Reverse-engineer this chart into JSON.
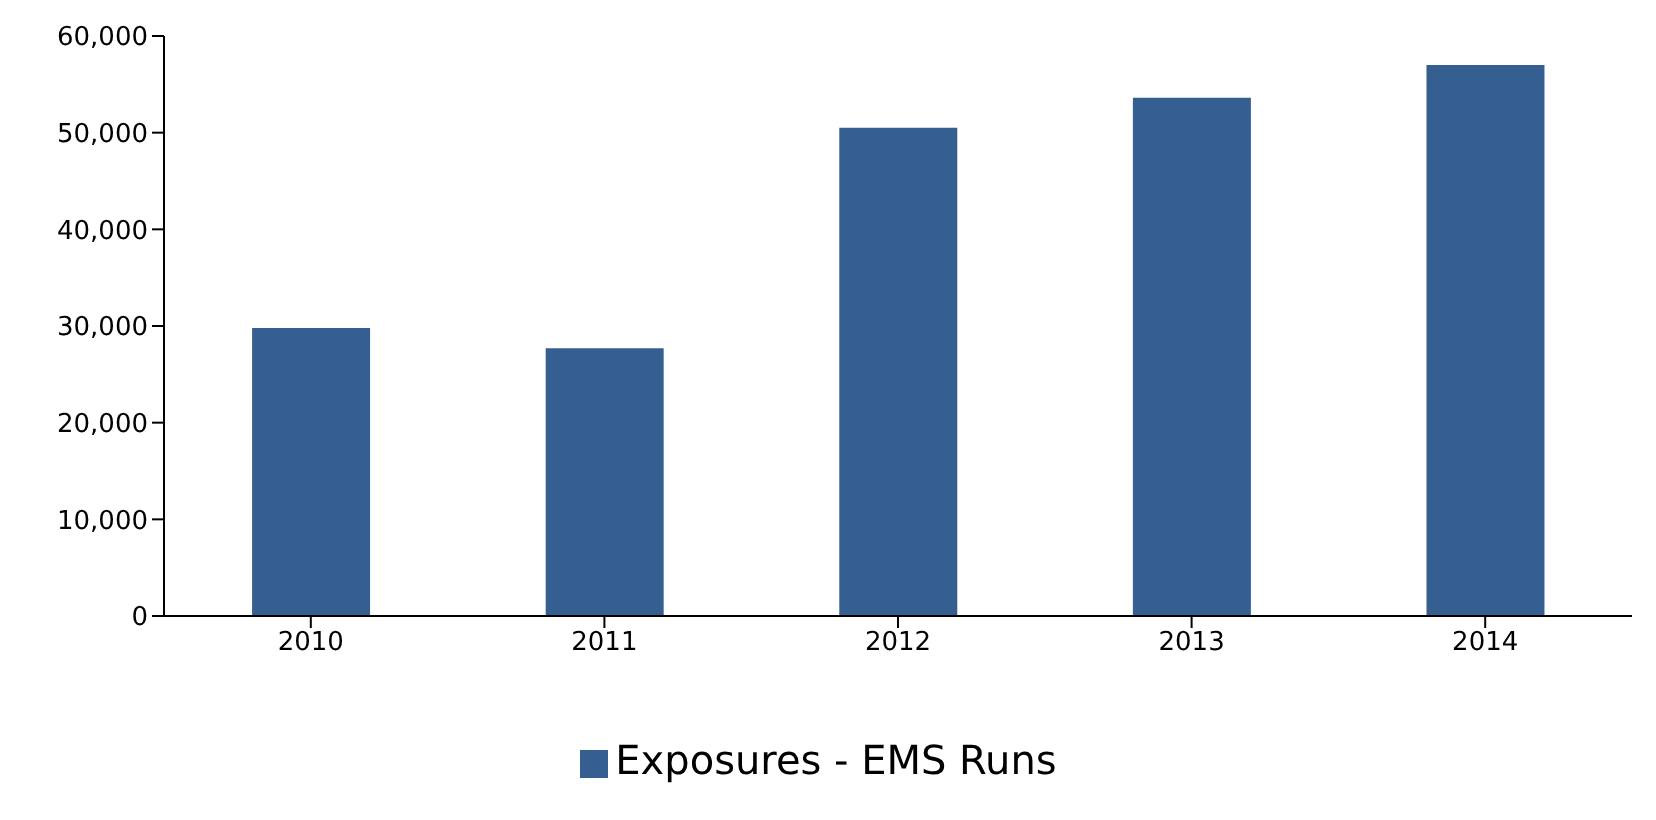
{
  "chart_data": {
    "type": "bar",
    "categories": [
      "2010",
      "2011",
      "2012",
      "2013",
      "2014"
    ],
    "series": [
      {
        "name": "Exposures - EMS Runs",
        "color": "#365f91",
        "values": [
          29800,
          27700,
          50500,
          53600,
          57000
        ]
      }
    ],
    "ylim": [
      0,
      60000
    ],
    "yticks": [
      0,
      {
        "value": 10000,
        "label": "10,000"
      },
      {
        "value": 20000,
        "label": "20,000"
      },
      {
        "value": 30000,
        "label": "30,000"
      },
      {
        "value": 40000,
        "label": "40,000"
      },
      {
        "value": 50000,
        "label": "50,000"
      },
      {
        "value": 60000,
        "label": "60,000"
      }
    ],
    "grid": false,
    "legend": "bottom"
  }
}
